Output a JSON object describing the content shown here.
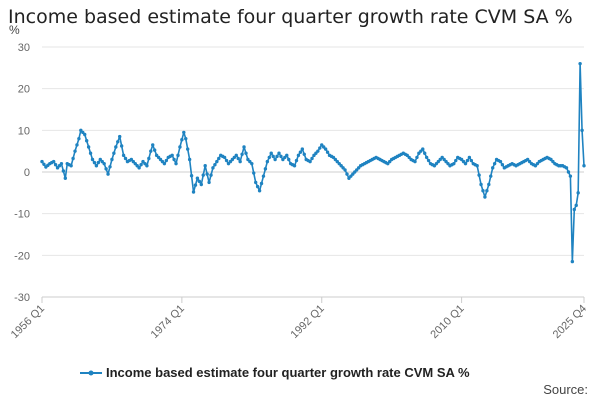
{
  "page": {
    "title": "Income based estimate four quarter growth rate CVM SA %",
    "unit": "%",
    "source_label": "Source:"
  },
  "chart_data": {
    "type": "line",
    "title": "Income based estimate four quarter growth rate CVM SA %",
    "xlabel": "",
    "ylabel": "%",
    "ylim": [
      -30,
      30
    ],
    "y_ticks": [
      30,
      20,
      10,
      0,
      -10,
      -20,
      -30
    ],
    "x_tick_labels": [
      "1956 Q1",
      "1974 Q1",
      "1992 Q1",
      "2010 Q1",
      "2025 Q4"
    ],
    "grid": true,
    "legend_position": "bottom",
    "color": "#1f83c1",
    "series": [
      {
        "name": "Income based estimate four quarter growth rate CVM SA %",
        "start_quarter": "1956 Q1",
        "end_quarter": "2025 Q4",
        "keyframes": [
          [
            "1956 Q1",
            2.5
          ],
          [
            "1956 Q3",
            1.2
          ],
          [
            "1957 Q1",
            2.0
          ],
          [
            "1957 Q3",
            2.5
          ],
          [
            "1958 Q1",
            1.0
          ],
          [
            "1958 Q3",
            2.0
          ],
          [
            "1959 Q1",
            -1.5
          ],
          [
            "1959 Q2",
            2.0
          ],
          [
            "1959 Q4",
            1.5
          ],
          [
            "1960 Q2",
            5.0
          ],
          [
            "1960 Q4",
            8.0
          ],
          [
            "1961 Q1",
            10.0
          ],
          [
            "1961 Q3",
            9.0
          ],
          [
            "1962 Q1",
            6.0
          ],
          [
            "1962 Q3",
            3.0
          ],
          [
            "1963 Q1",
            1.5
          ],
          [
            "1963 Q3",
            3.0
          ],
          [
            "1964 Q1",
            2.0
          ],
          [
            "1964 Q3",
            -0.5
          ],
          [
            "1965 Q1",
            3.0
          ],
          [
            "1965 Q3",
            6.0
          ],
          [
            "1966 Q1",
            8.5
          ],
          [
            "1966 Q3",
            4.0
          ],
          [
            "1967 Q1",
            2.5
          ],
          [
            "1967 Q3",
            3.0
          ],
          [
            "1968 Q1",
            2.0
          ],
          [
            "1968 Q3",
            1.0
          ],
          [
            "1969 Q1",
            2.5
          ],
          [
            "1969 Q3",
            1.5
          ],
          [
            "1970 Q1",
            5.0
          ],
          [
            "1970 Q2",
            6.5
          ],
          [
            "1970 Q4",
            4.0
          ],
          [
            "1971 Q2",
            3.0
          ],
          [
            "1971 Q4",
            2.0
          ],
          [
            "1972 Q2",
            3.5
          ],
          [
            "1972 Q4",
            4.0
          ],
          [
            "1973 Q2",
            2.0
          ],
          [
            "1973 Q4",
            6.0
          ],
          [
            "1974 Q2",
            9.5
          ],
          [
            "1974 Q3",
            8.0
          ],
          [
            "1975 Q1",
            3.0
          ],
          [
            "1975 Q3",
            -4.8
          ],
          [
            "1976 Q1",
            -1.5
          ],
          [
            "1976 Q3",
            -3.0
          ],
          [
            "1977 Q1",
            1.5
          ],
          [
            "1977 Q3",
            -2.5
          ],
          [
            "1978 Q1",
            1.0
          ],
          [
            "1978 Q3",
            2.5
          ],
          [
            "1979 Q1",
            4.0
          ],
          [
            "1979 Q3",
            3.5
          ],
          [
            "1980 Q1",
            2.0
          ],
          [
            "1980 Q3",
            3.0
          ],
          [
            "1981 Q1",
            4.0
          ],
          [
            "1981 Q3",
            2.5
          ],
          [
            "1982 Q1",
            6.0
          ],
          [
            "1982 Q3",
            3.0
          ],
          [
            "1983 Q1",
            2.0
          ],
          [
            "1983 Q3",
            -2.5
          ],
          [
            "1984 Q1",
            -4.5
          ],
          [
            "1984 Q3",
            -1.0
          ],
          [
            "1985 Q1",
            2.5
          ],
          [
            "1985 Q3",
            4.5
          ],
          [
            "1986 Q1",
            3.0
          ],
          [
            "1986 Q3",
            4.5
          ],
          [
            "1987 Q1",
            3.0
          ],
          [
            "1987 Q3",
            4.0
          ],
          [
            "1988 Q1",
            2.0
          ],
          [
            "1988 Q3",
            1.5
          ],
          [
            "1989 Q1",
            4.0
          ],
          [
            "1989 Q3",
            5.5
          ],
          [
            "1990 Q1",
            3.0
          ],
          [
            "1990 Q3",
            2.5
          ],
          [
            "1991 Q1",
            4.0
          ],
          [
            "1991 Q3",
            5.0
          ],
          [
            "1992 Q1",
            6.5
          ],
          [
            "1992 Q3",
            5.5
          ],
          [
            "1993 Q1",
            4.0
          ],
          [
            "1993 Q3",
            3.5
          ],
          [
            "1994 Q1",
            2.5
          ],
          [
            "1994 Q3",
            1.5
          ],
          [
            "1995 Q1",
            0.5
          ],
          [
            "1995 Q3",
            -1.5
          ],
          [
            "1996 Q1",
            -0.5
          ],
          [
            "1996 Q3",
            0.5
          ],
          [
            "1997 Q1",
            1.5
          ],
          [
            "1997 Q3",
            2.0
          ],
          [
            "1998 Q1",
            2.5
          ],
          [
            "1998 Q3",
            3.0
          ],
          [
            "1999 Q1",
            3.5
          ],
          [
            "1999 Q3",
            3.0
          ],
          [
            "2000 Q1",
            2.5
          ],
          [
            "2000 Q3",
            2.0
          ],
          [
            "2001 Q1",
            3.0
          ],
          [
            "2001 Q3",
            3.5
          ],
          [
            "2002 Q1",
            4.0
          ],
          [
            "2002 Q3",
            4.5
          ],
          [
            "2003 Q1",
            4.0
          ],
          [
            "2003 Q3",
            3.0
          ],
          [
            "2004 Q1",
            2.5
          ],
          [
            "2004 Q3",
            4.5
          ],
          [
            "2005 Q1",
            5.5
          ],
          [
            "2005 Q3",
            3.5
          ],
          [
            "2006 Q1",
            2.0
          ],
          [
            "2006 Q3",
            1.5
          ],
          [
            "2007 Q1",
            2.5
          ],
          [
            "2007 Q3",
            3.5
          ],
          [
            "2008 Q1",
            2.5
          ],
          [
            "2008 Q3",
            1.5
          ],
          [
            "2009 Q1",
            2.0
          ],
          [
            "2009 Q3",
            3.5
          ],
          [
            "2010 Q1",
            3.0
          ],
          [
            "2010 Q3",
            2.0
          ],
          [
            "2011 Q1",
            3.5
          ],
          [
            "2011 Q3",
            2.0
          ],
          [
            "2012 Q1",
            1.5
          ],
          [
            "2012 Q3",
            -3.0
          ],
          [
            "2013 Q1",
            -6.0
          ],
          [
            "2013 Q3",
            -3.0
          ],
          [
            "2014 Q1",
            1.0
          ],
          [
            "2014 Q3",
            3.0
          ],
          [
            "2015 Q1",
            2.5
          ],
          [
            "2015 Q3",
            1.0
          ],
          [
            "2016 Q1",
            1.5
          ],
          [
            "2016 Q3",
            2.0
          ],
          [
            "2017 Q1",
            1.5
          ],
          [
            "2017 Q3",
            2.0
          ],
          [
            "2018 Q1",
            2.5
          ],
          [
            "2018 Q3",
            3.0
          ],
          [
            "2019 Q1",
            2.0
          ],
          [
            "2019 Q3",
            1.5
          ],
          [
            "2020 Q1",
            2.5
          ],
          [
            "2020 Q3",
            3.0
          ],
          [
            "2021 Q1",
            3.5
          ],
          [
            "2021 Q3",
            3.0
          ],
          [
            "2022 Q1",
            2.0
          ],
          [
            "2022 Q3",
            1.5
          ],
          [
            "2023 Q1",
            1.5
          ],
          [
            "2023 Q3",
            1.0
          ],
          [
            "2024 Q1",
            -1.0
          ],
          [
            "2024 Q2",
            -21.5
          ],
          [
            "2024 Q3",
            -9.0
          ],
          [
            "2024 Q4",
            -8.0
          ],
          [
            "2025 Q1",
            -5.0
          ],
          [
            "2025 Q2",
            26.0
          ],
          [
            "2025 Q3",
            9.5
          ],
          [
            "2025 Q3",
            10.0
          ],
          [
            "2025 Q4",
            1.5
          ]
        ]
      }
    ]
  }
}
